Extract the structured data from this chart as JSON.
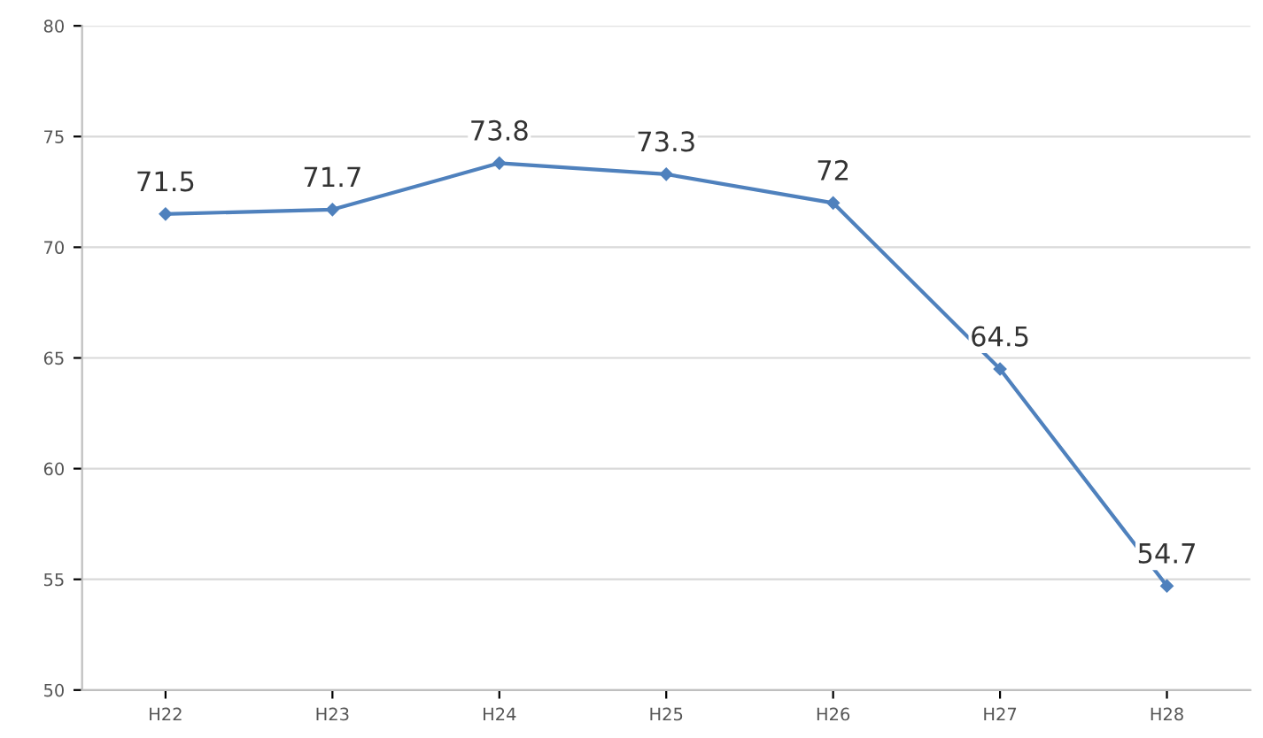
{
  "chart_data": {
    "type": "line",
    "categories": [
      "H22",
      "H23",
      "H24",
      "H25",
      "H26",
      "H27",
      "H28"
    ],
    "series": [
      {
        "color": "#4f81bd",
        "values": [
          71.5,
          71.7,
          73.8,
          73.3,
          72,
          64.5,
          54.7
        ]
      }
    ],
    "ylim": [
      50,
      80
    ],
    "yticks": [
      50,
      55,
      60,
      65,
      70,
      75,
      80
    ],
    "grid": "y",
    "marker": "diamond",
    "line_style": "solid",
    "data_labels": true,
    "legend": false
  }
}
